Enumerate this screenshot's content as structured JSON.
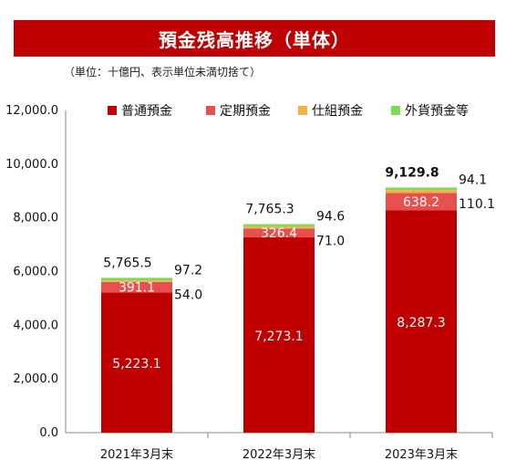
{
  "header": {
    "title": "預金残高推移（単体）",
    "unit_note": "（単位：十億円、表示単位未満切捨て）"
  },
  "colors": {
    "banner": "#c00000",
    "普通預金": "#c00000",
    "定期預金": "#e8504f",
    "仕組預金": "#f5b041",
    "外貨預金等": "#7ed957"
  },
  "chart_data": {
    "type": "bar",
    "stacked": true,
    "categories": [
      "2021年3月末",
      "2022年3月末",
      "2023年3月末"
    ],
    "series": [
      {
        "name": "普通預金",
        "values": [
          5223.1,
          7273.1,
          8287.3
        ],
        "labels": [
          "5,223.1",
          "7,273.1",
          "8,287.3"
        ]
      },
      {
        "name": "定期預金",
        "values": [
          391.1,
          326.4,
          638.2
        ],
        "labels": [
          "391.1",
          "326.4",
          "638.2"
        ]
      },
      {
        "name": "仕組預金",
        "values": [
          54.0,
          71.0,
          110.1
        ],
        "labels": [
          "54.0",
          "71.0",
          "110.1"
        ]
      },
      {
        "name": "外貨預金等",
        "values": [
          97.2,
          94.6,
          94.1
        ],
        "labels": [
          "97.2",
          "94.6",
          "94.1"
        ]
      }
    ],
    "totals": [
      "5,765.5",
      "7,765.3",
      "9,129.8"
    ],
    "ylim": [
      0,
      12000
    ],
    "yticks": [
      0,
      2000,
      4000,
      6000,
      8000,
      10000,
      12000
    ],
    "ytick_labels": [
      "0.0",
      "2,000.0",
      "4,000.0",
      "6,000.0",
      "8,000.0",
      "10,000.0",
      "12,000.0"
    ],
    "legend_position": "top",
    "grid": false
  }
}
